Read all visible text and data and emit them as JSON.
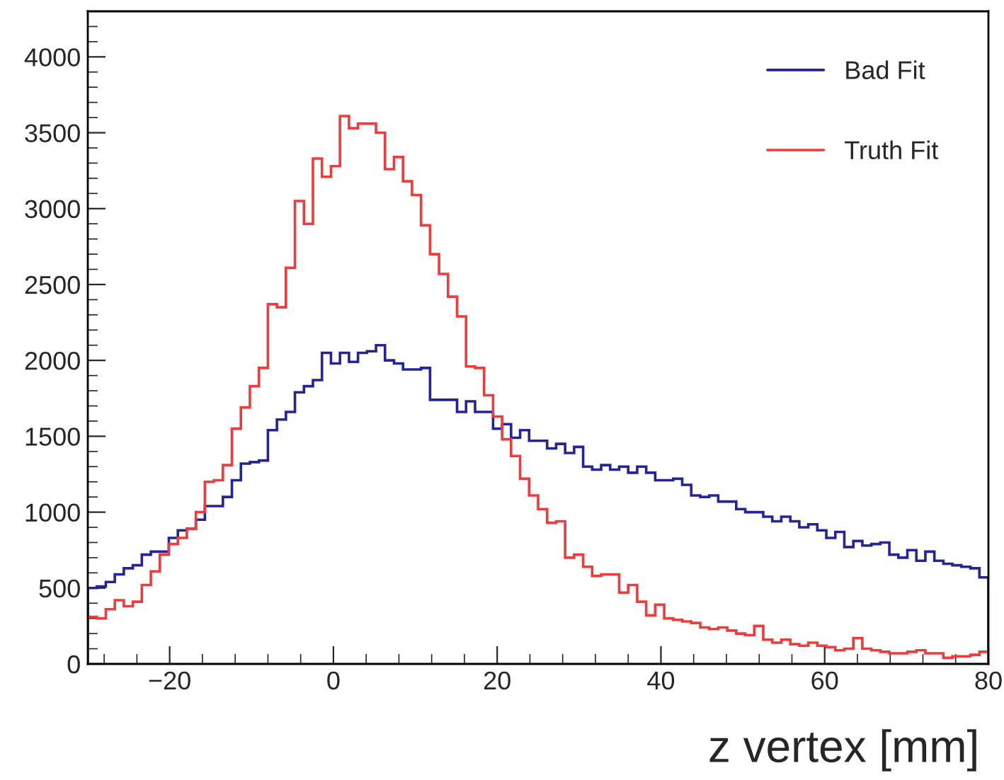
{
  "chart_data": {
    "type": "histogram",
    "xlabel": "z vertex [mm]",
    "bins": [
      -30,
      -28.9,
      -27.8,
      -26.7,
      -25.6,
      -24.5,
      -23.4,
      -22.3,
      -21.2,
      -20.1,
      -19,
      -17.9,
      -16.8,
      -15.7,
      -14.6,
      -13.5,
      -12.4,
      -11.3,
      -10.2,
      -9.1,
      -8,
      -6.9,
      -5.8,
      -4.7,
      -3.6,
      -2.5,
      -1.4,
      -0.3,
      0.8,
      1.9,
      3,
      4.1,
      5.2,
      6.3,
      7.4,
      8.5,
      9.6,
      10.7,
      11.8,
      12.9,
      14,
      15.1,
      16.2,
      17.3,
      18.4,
      19.5,
      20.6,
      21.7,
      22.8,
      23.9,
      25,
      26.1,
      27.2,
      28.3,
      29.4,
      30.5,
      31.6,
      32.7,
      33.8,
      34.9,
      36,
      37.1,
      38.2,
      39.3,
      40.4,
      41.5,
      42.6,
      43.7,
      44.8,
      45.9,
      47,
      48.1,
      49.2,
      50.3,
      51.4,
      52.5,
      53.6,
      54.7,
      55.8,
      56.9,
      58,
      59.1,
      60.2,
      61.3,
      62.4,
      63.5,
      64.6,
      65.7,
      66.8,
      67.9,
      69,
      70.1,
      71.2,
      72.3,
      73.4,
      74.5,
      75.6,
      76.7,
      77.8,
      78.9,
      80
    ],
    "series": [
      {
        "name": "Bad Fit",
        "color": "#24249a",
        "values": [
          500,
          510,
          540,
          590,
          630,
          650,
          720,
          740,
          740,
          830,
          880,
          890,
          950,
          1040,
          1040,
          1100,
          1210,
          1320,
          1330,
          1340,
          1540,
          1610,
          1660,
          1790,
          1830,
          1870,
          2050,
          1980,
          2050,
          1990,
          2050,
          2060,
          2100,
          2000,
          1980,
          1940,
          1940,
          1950,
          1740,
          1740,
          1740,
          1660,
          1730,
          1660,
          1660,
          1550,
          1580,
          1490,
          1540,
          1470,
          1470,
          1420,
          1450,
          1390,
          1430,
          1300,
          1280,
          1310,
          1280,
          1300,
          1260,
          1300,
          1260,
          1210,
          1210,
          1220,
          1180,
          1110,
          1100,
          1110,
          1070,
          1070,
          1020,
          1000,
          1000,
          970,
          940,
          970,
          940,
          900,
          920,
          880,
          830,
          870,
          770,
          810,
          780,
          790,
          800,
          720,
          700,
          750,
          680,
          740,
          680,
          660,
          650,
          640,
          630,
          570
        ]
      },
      {
        "name": "Truth Fit",
        "color": "#ee3b3b",
        "values": [
          310,
          300,
          360,
          420,
          380,
          410,
          520,
          610,
          720,
          790,
          830,
          890,
          1000,
          1200,
          1210,
          1310,
          1550,
          1690,
          1830,
          1950,
          2370,
          2350,
          2610,
          3050,
          2900,
          3330,
          3210,
          3280,
          3610,
          3530,
          3560,
          3560,
          3500,
          3260,
          3340,
          3180,
          3090,
          2890,
          2700,
          2570,
          2420,
          2290,
          1960,
          1950,
          1770,
          1630,
          1480,
          1370,
          1220,
          1110,
          1020,
          930,
          940,
          700,
          720,
          640,
          580,
          590,
          590,
          470,
          520,
          410,
          320,
          390,
          300,
          290,
          280,
          270,
          240,
          230,
          240,
          220,
          200,
          190,
          250,
          160,
          140,
          160,
          130,
          120,
          140,
          120,
          110,
          90,
          100,
          170,
          100,
          90,
          80,
          70,
          70,
          80,
          90,
          70,
          70,
          40,
          50,
          50,
          60,
          80
        ]
      }
    ],
    "xlim": [
      -30,
      80
    ],
    "ylim": [
      0,
      4300
    ],
    "xticks": [
      {
        "value": -20,
        "label": "−20"
      },
      0,
      20,
      40,
      60,
      80
    ],
    "yticks": [
      0,
      500,
      1000,
      1500,
      2000,
      2500,
      3000,
      3500,
      4000
    ],
    "legend": "top right",
    "grid": false
  }
}
